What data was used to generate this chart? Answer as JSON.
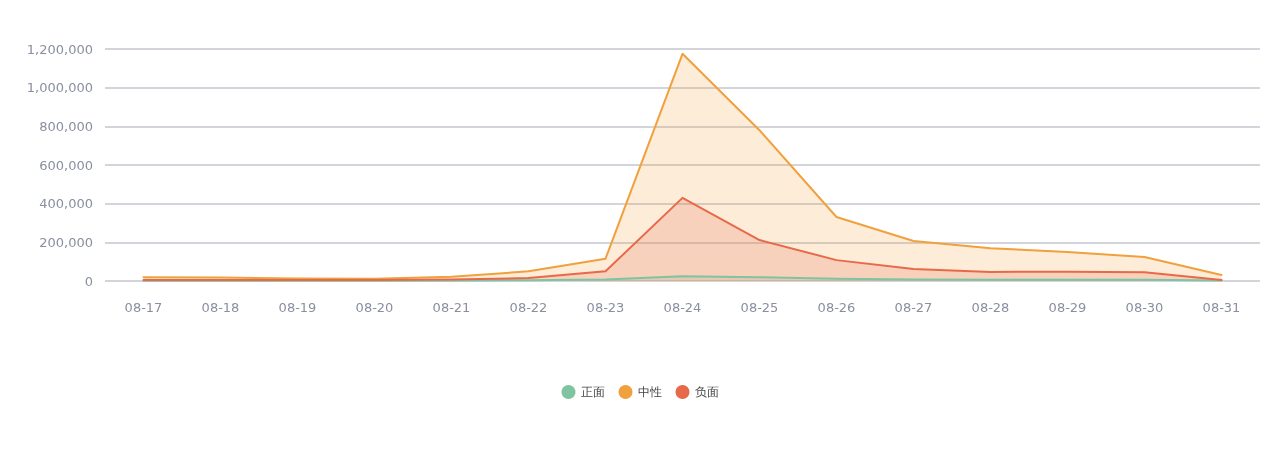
{
  "chart_data": {
    "type": "area",
    "categories": [
      "08-17",
      "08-18",
      "08-19",
      "08-20",
      "08-21",
      "08-22",
      "08-23",
      "08-24",
      "08-25",
      "08-26",
      "08-27",
      "08-28",
      "08-29",
      "08-30",
      "08-31"
    ],
    "series": [
      {
        "name": "正面",
        "color": "#7ec4a0",
        "values": [
          1000,
          1000,
          1000,
          1000,
          2000,
          4000,
          8000,
          24000,
          20000,
          12000,
          8000,
          6000,
          7000,
          6000,
          2000
        ]
      },
      {
        "name": "中性",
        "color": "#f0a03c",
        "values": [
          20000,
          18000,
          13000,
          12000,
          22000,
          50000,
          115000,
          1175000,
          780000,
          331000,
          207000,
          170000,
          150000,
          124000,
          31000
        ]
      },
      {
        "name": "负面",
        "color": "#e8694a",
        "values": [
          5000,
          5000,
          5000,
          5000,
          8000,
          15000,
          50000,
          430000,
          212000,
          108000,
          62000,
          47000,
          48000,
          45000,
          5000
        ]
      }
    ],
    "ylim": [
      0,
      1200000
    ],
    "yticks": [
      0,
      {
        "value": 200000,
        "label": "200,000"
      },
      {
        "value": 400000,
        "label": "400,000"
      },
      {
        "value": 600000,
        "label": "600,000"
      },
      {
        "value": 800000,
        "label": "800,000"
      },
      {
        "value": 1000000,
        "label": "1,000,000"
      },
      {
        "value": 1200000,
        "label": "1,200,000"
      }
    ],
    "grid": "y",
    "legend": "bottom",
    "marker": "none",
    "line_style": "solid"
  }
}
